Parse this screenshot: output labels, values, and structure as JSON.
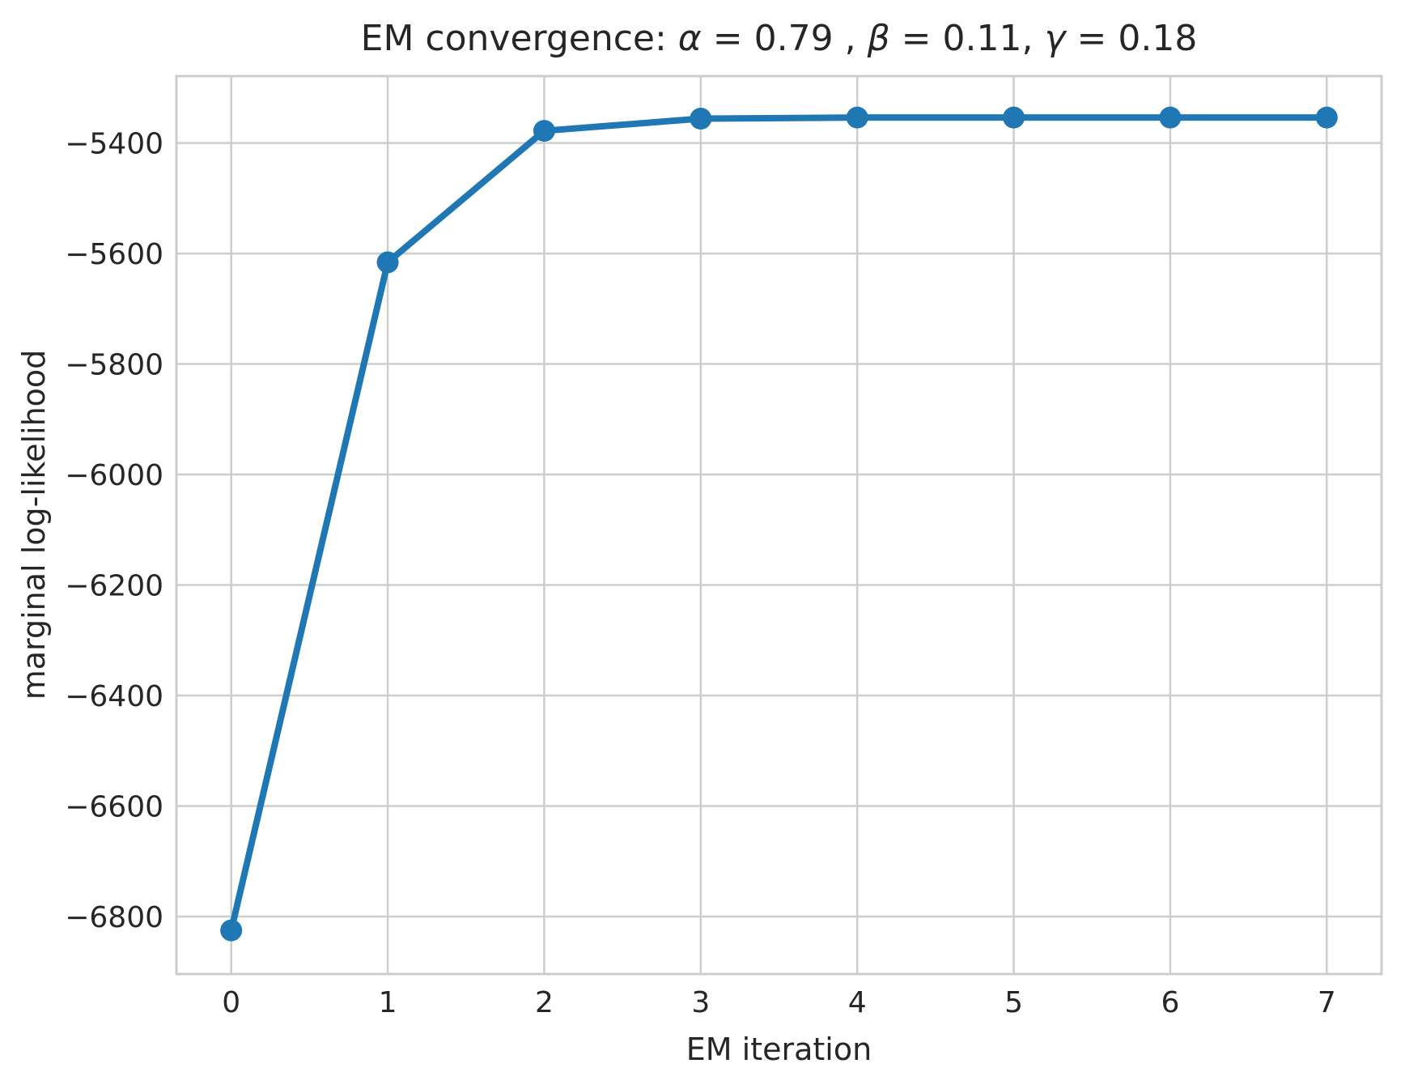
{
  "chart_data": {
    "type": "line",
    "title": "EM convergence: α = 0.79 , β = 0.11, γ = 0.18",
    "title_segments": [
      {
        "text": "EM convergence: ",
        "italic": false
      },
      {
        "text": "α",
        "italic": true
      },
      {
        "text": " = 0.79 , ",
        "italic": false
      },
      {
        "text": "β",
        "italic": true
      },
      {
        "text": " = 0.11, ",
        "italic": false
      },
      {
        "text": "γ",
        "italic": true
      },
      {
        "text": " = 0.18",
        "italic": false
      }
    ],
    "xlabel": "EM iteration",
    "ylabel": "marginal log-likelihood",
    "x": [
      0,
      1,
      2,
      3,
      4,
      5,
      6,
      7
    ],
    "series": [
      {
        "name": "marginal log-likelihood",
        "values": [
          -6825,
          -5616,
          -5378,
          -5356,
          -5354,
          -5354,
          -5354,
          -5354
        ]
      }
    ],
    "xticks": {
      "values": [
        0,
        1,
        2,
        3,
        4,
        5,
        6,
        7
      ],
      "labels": [
        "0",
        "1",
        "2",
        "3",
        "4",
        "5",
        "6",
        "7"
      ]
    },
    "yticks": {
      "values": [
        -5400,
        -5600,
        -5800,
        -6000,
        -6200,
        -6400,
        -6600,
        -6800
      ],
      "labels": [
        "−5400",
        "−5600",
        "−5800",
        "−6000",
        "−6200",
        "−6400",
        "−6600",
        "−6800"
      ]
    },
    "xlim": [
      -0.35,
      7.35
    ],
    "ylim": [
      -6904,
      -5279
    ],
    "grid": true,
    "legend_position": "none",
    "marker": "circle",
    "colors": {
      "line": "#1f77b4",
      "marker": "#1f77b4",
      "grid": "#cdcdcd",
      "spine": "#cdcdcd",
      "text": "#262626",
      "background": "#ffffff"
    }
  }
}
